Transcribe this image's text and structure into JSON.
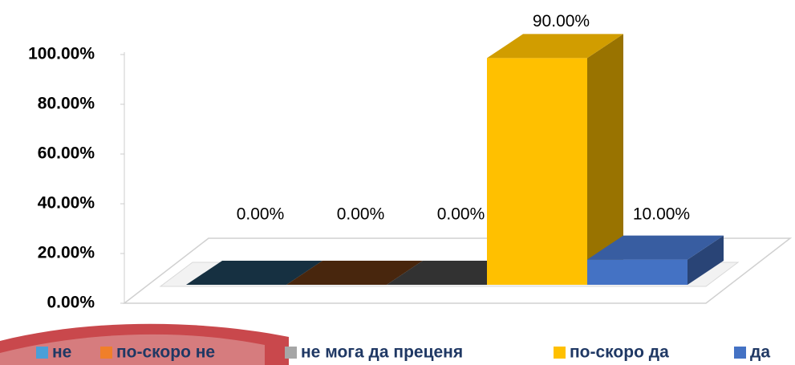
{
  "chart_data": {
    "type": "bar3d",
    "categories": [
      "не",
      "по-скоро не",
      "не мога да преценя",
      "по-скоро да",
      "да"
    ],
    "values": [
      0,
      0,
      0,
      90,
      10
    ],
    "value_labels": [
      "0.00%",
      "0.00%",
      "0.00%",
      "90.00%",
      "10.00%"
    ],
    "colors": [
      "#4a9fd8",
      "#f07f2a",
      "#a6a6a6",
      "#ffc000",
      "#4472c4"
    ],
    "ylim": [
      0,
      100
    ],
    "yticks": [
      {
        "value": 0,
        "label": "0.00%"
      },
      {
        "value": 20,
        "label": "20.00%"
      },
      {
        "value": 40,
        "label": "40.00%"
      },
      {
        "value": 60,
        "label": "60.00%"
      },
      {
        "value": 80,
        "label": "80.00%"
      },
      {
        "value": 100,
        "label": "100.00%"
      }
    ]
  }
}
